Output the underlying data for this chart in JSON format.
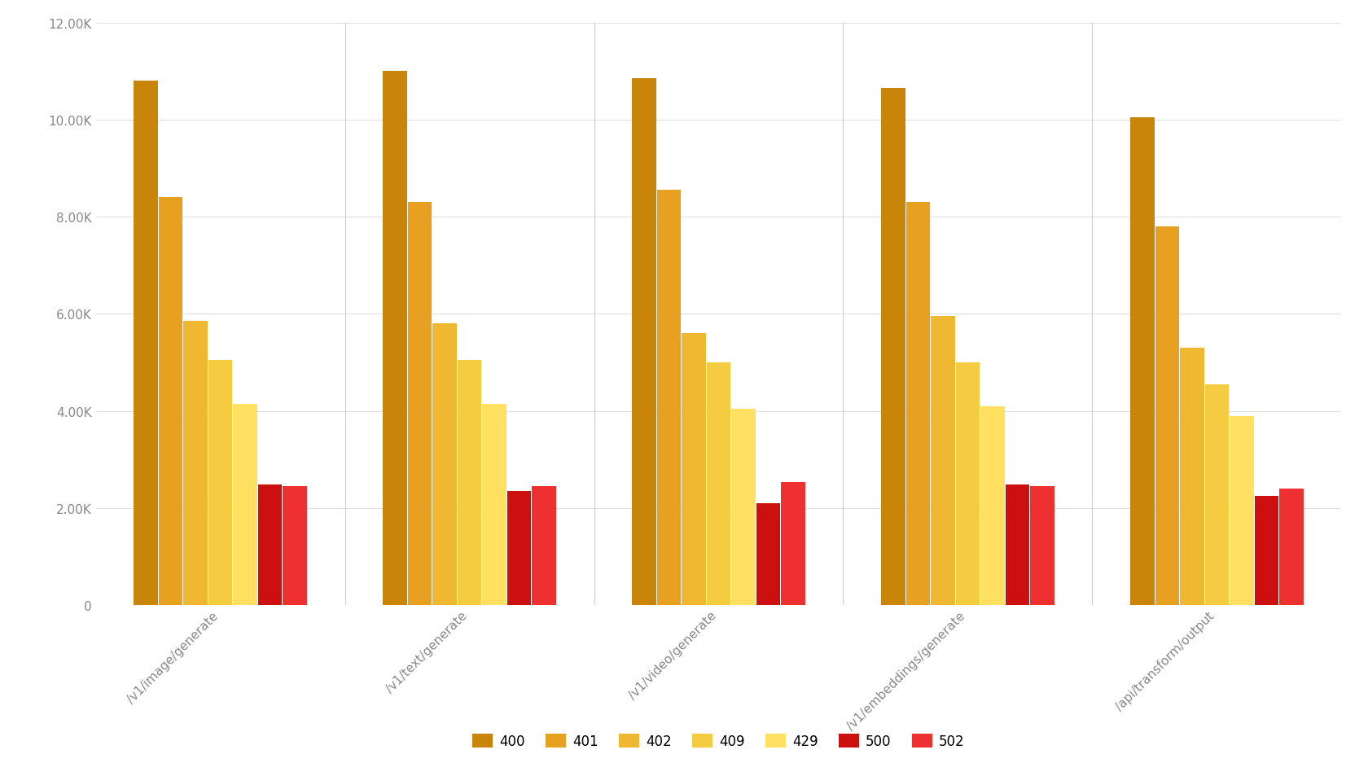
{
  "categories": [
    "/v1/image/generate",
    "/v1/text/generate",
    "/v1/video/generate",
    "/v1/embeddings/generate",
    "/api/transform/output"
  ],
  "series": {
    "400": [
      10800,
      11000,
      10850,
      10650,
      10050
    ],
    "401": [
      8400,
      8300,
      8550,
      8300,
      7800
    ],
    "402": [
      5850,
      5800,
      5600,
      5950,
      5300
    ],
    "409": [
      5050,
      5050,
      5000,
      5000,
      4550
    ],
    "429": [
      4150,
      4150,
      4050,
      4100,
      3900
    ],
    "500": [
      2480,
      2350,
      2100,
      2480,
      2250
    ],
    "502": [
      2450,
      2450,
      2530,
      2450,
      2400
    ]
  },
  "colors": {
    "400": "#C8850A",
    "401": "#E8A020",
    "402": "#F0B830",
    "409": "#F5CC40",
    "429": "#FFE060",
    "500": "#CC1010",
    "502": "#EE3030"
  },
  "ylim": [
    0,
    12000
  ],
  "yticks": [
    0,
    2000,
    4000,
    6000,
    8000,
    10000,
    12000
  ],
  "ytick_labels": [
    "0",
    "2.00K",
    "4.00K",
    "6.00K",
    "8.00K",
    "10.00K",
    "12.00K"
  ],
  "background_color": "#ffffff",
  "grid_color": "#e0e0e0",
  "bar_width": 0.115,
  "group_padding": 0.35
}
